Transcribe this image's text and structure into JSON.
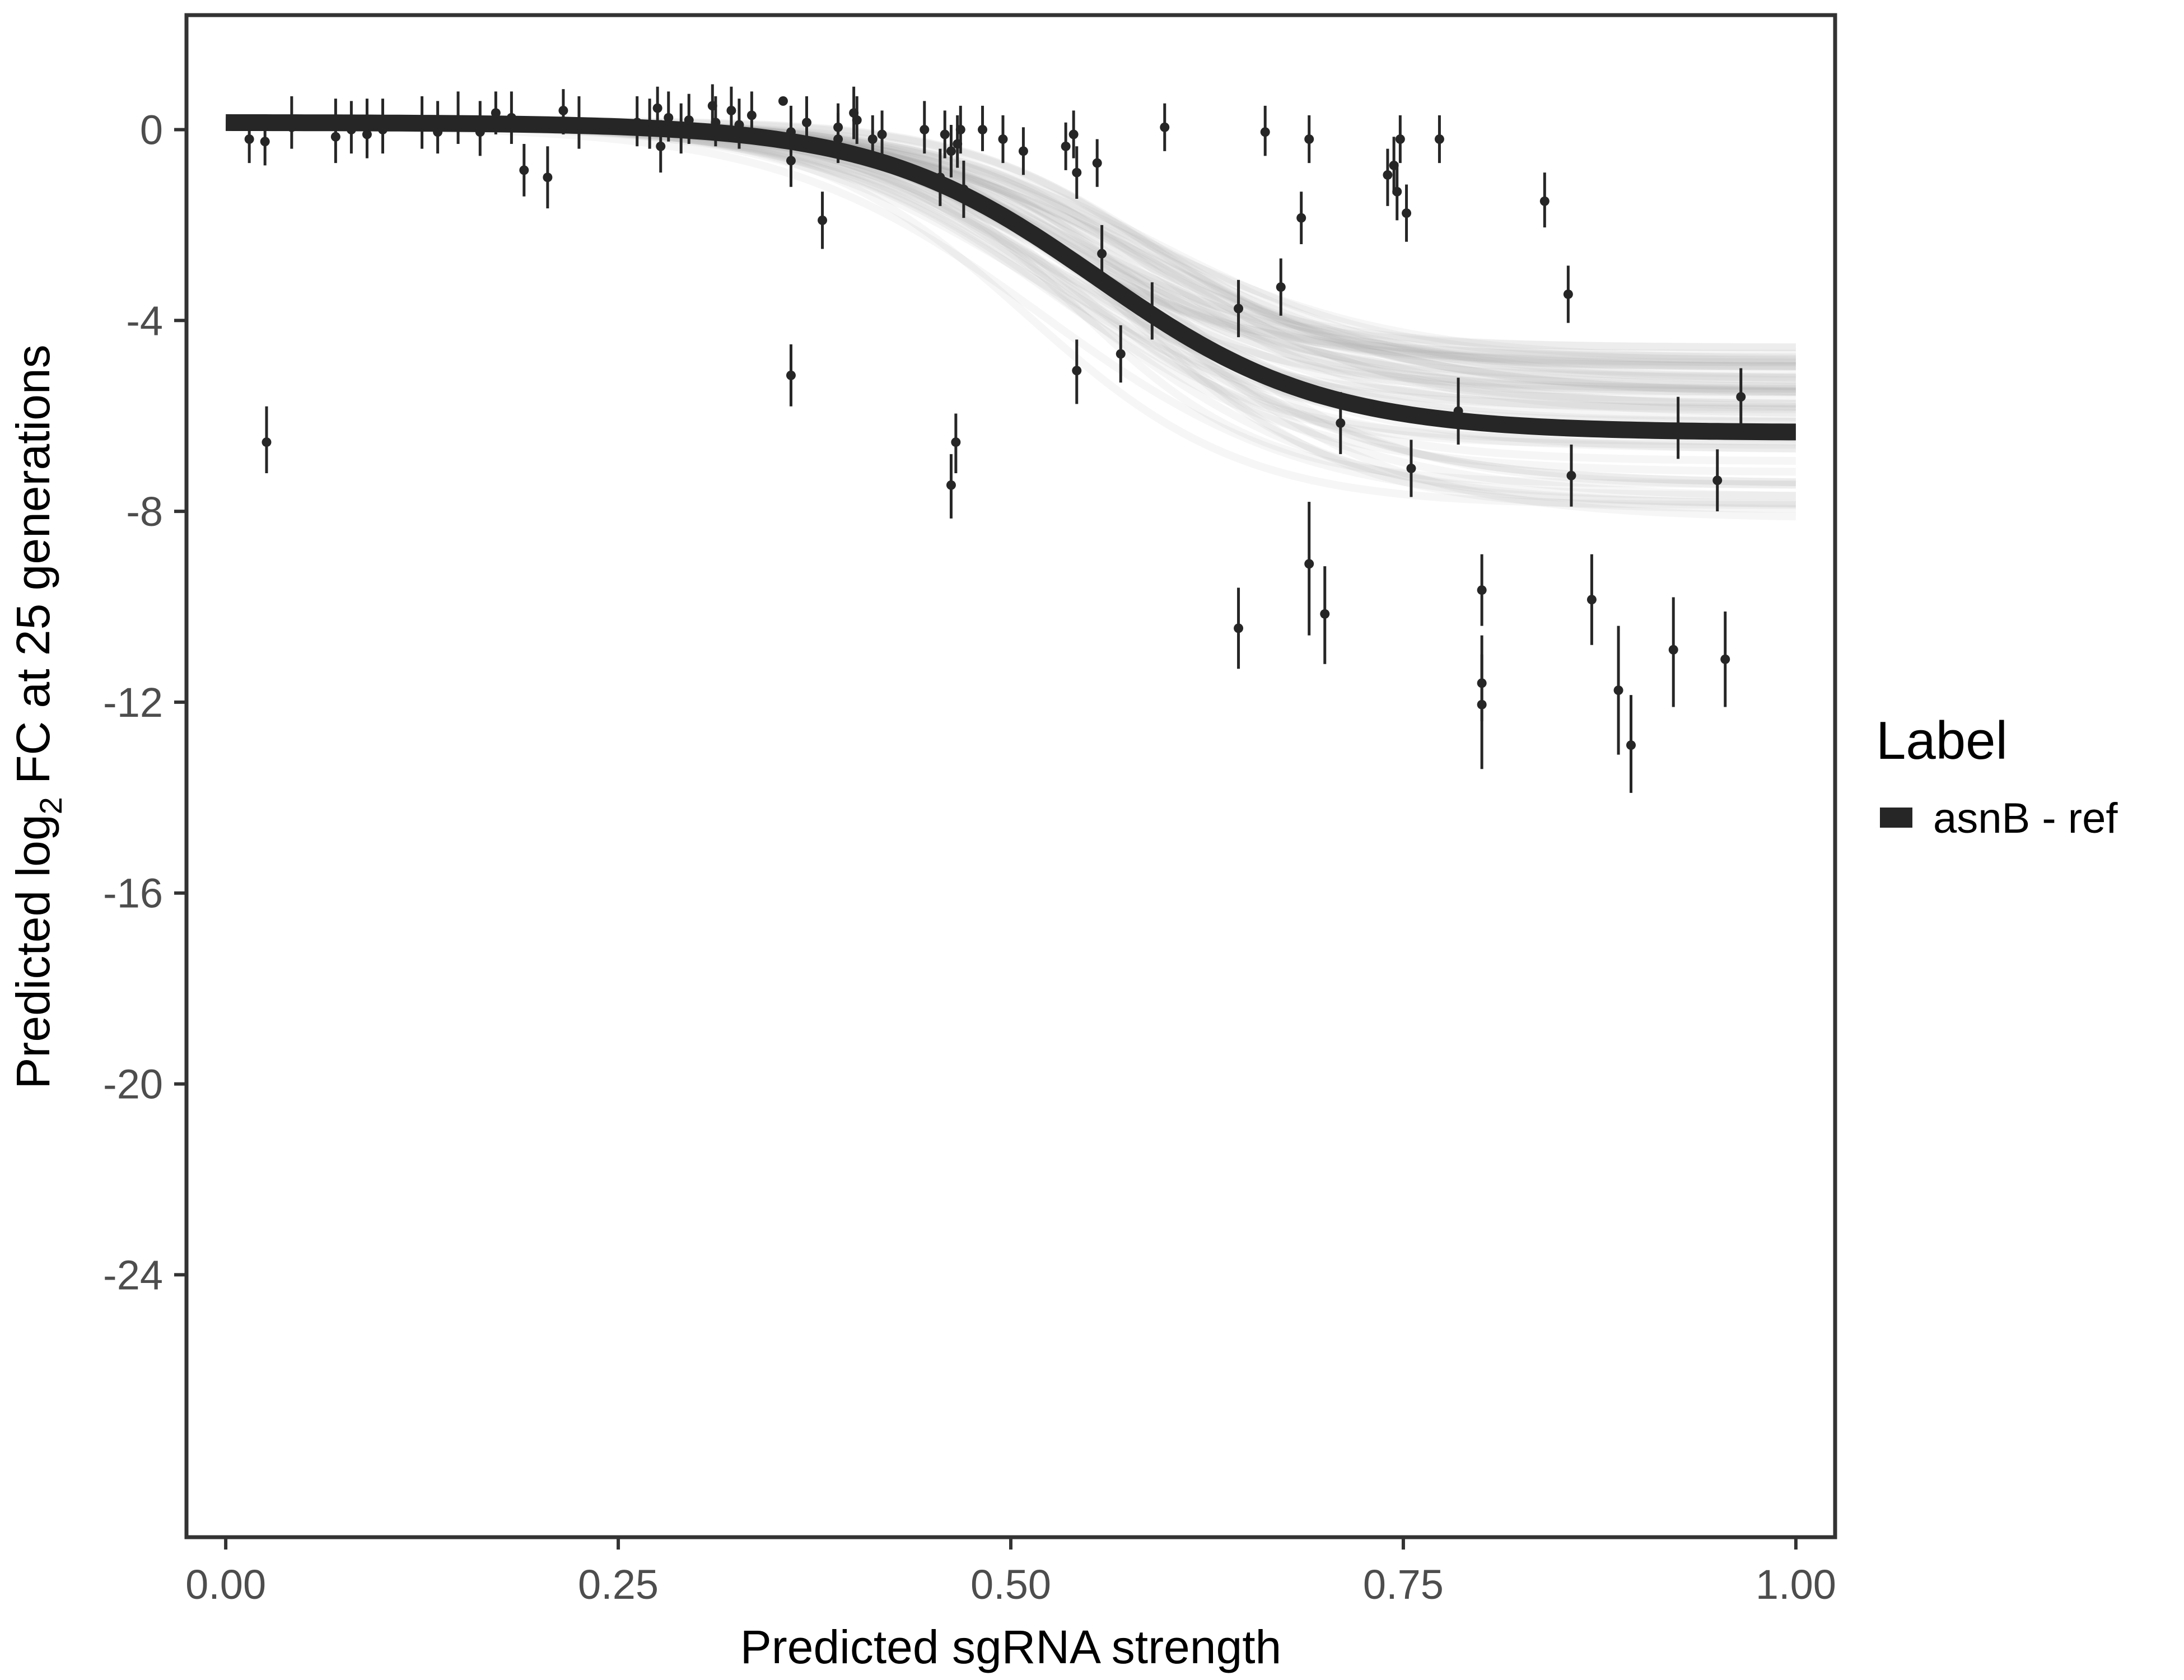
{
  "chart_data": {
    "type": "scatter",
    "title": "",
    "xlabel": "Predicted sgRNA strength",
    "ylabel_parts": {
      "pre": "Predicted  log",
      "sub": "2",
      "post": " FC at 25 generations"
    },
    "xlim": [
      -0.025,
      1.025
    ],
    "ylim": [
      -29.5,
      2.4
    ],
    "x_ticks": [
      0,
      0.25,
      0.5,
      0.75,
      1
    ],
    "x_tick_labels": [
      "0.00",
      "0.25",
      "0.50",
      "0.75",
      "1.00"
    ],
    "y_ticks": [
      0,
      -4,
      -8,
      -12,
      -16,
      -20,
      -24
    ],
    "y_tick_labels": [
      "0",
      "-4",
      "-8",
      "-12",
      "-16",
      "-20",
      "-24"
    ],
    "grid": false,
    "legend": {
      "title": "Label",
      "position": "right",
      "items": [
        {
          "label": "asnB - ref",
          "color": "#262626"
        }
      ]
    },
    "fit_curve": {
      "series": "asnB - ref",
      "upper": 0.15,
      "lower": -6.35,
      "midpoint": 0.555,
      "steepness": 14
    },
    "posterior_band": {
      "color": "#999999",
      "n_draws": 60
    },
    "points": [
      {
        "x": 0.015,
        "y": -0.2,
        "lo": -0.7,
        "hi": 0.3
      },
      {
        "x": 0.025,
        "y": -0.25,
        "lo": -0.75,
        "hi": 0.25
      },
      {
        "x": 0.026,
        "y": -6.55,
        "lo": -7.2,
        "hi": -5.8
      },
      {
        "x": 0.042,
        "y": 0.05,
        "lo": -0.4,
        "hi": 0.7
      },
      {
        "x": 0.07,
        "y": -0.15,
        "lo": -0.7,
        "hi": 0.65
      },
      {
        "x": 0.08,
        "y": 0.0,
        "lo": -0.5,
        "hi": 0.6
      },
      {
        "x": 0.09,
        "y": -0.1,
        "lo": -0.6,
        "hi": 0.65
      },
      {
        "x": 0.1,
        "y": 0.0,
        "lo": -0.5,
        "hi": 0.65
      },
      {
        "x": 0.125,
        "y": 0.1,
        "lo": -0.4,
        "hi": 0.7
      },
      {
        "x": 0.135,
        "y": -0.05,
        "lo": -0.5,
        "hi": 0.6
      },
      {
        "x": 0.148,
        "y": 0.2,
        "lo": -0.3,
        "hi": 0.8
      },
      {
        "x": 0.162,
        "y": -0.05,
        "lo": -0.55,
        "hi": 0.6
      },
      {
        "x": 0.172,
        "y": 0.35,
        "lo": -0.1,
        "hi": 0.8
      },
      {
        "x": 0.182,
        "y": 0.25,
        "lo": -0.3,
        "hi": 0.8
      },
      {
        "x": 0.19,
        "y": -0.85,
        "lo": -1.4,
        "hi": -0.3
      },
      {
        "x": 0.205,
        "y": -1.0,
        "lo": -1.65,
        "hi": -0.35
      },
      {
        "x": 0.215,
        "y": 0.4,
        "lo": -0.1,
        "hi": 0.85
      },
      {
        "x": 0.225,
        "y": 0.1,
        "lo": -0.4,
        "hi": 0.7
      },
      {
        "x": 0.262,
        "y": 0.15,
        "lo": -0.35,
        "hi": 0.7
      },
      {
        "x": 0.27,
        "y": 0.1,
        "lo": -0.4,
        "hi": 0.65
      },
      {
        "x": 0.275,
        "y": 0.45,
        "lo": -0.05,
        "hi": 0.9
      },
      {
        "x": 0.277,
        "y": -0.35,
        "lo": -0.9,
        "hi": 0.2
      },
      {
        "x": 0.282,
        "y": 0.25,
        "lo": -0.25,
        "hi": 0.8
      },
      {
        "x": 0.29,
        "y": 0.0,
        "lo": -0.5,
        "hi": 0.55
      },
      {
        "x": 0.295,
        "y": 0.2,
        "lo": -0.3,
        "hi": 0.75
      },
      {
        "x": 0.31,
        "y": 0.5,
        "lo": 0.0,
        "hi": 0.95
      },
      {
        "x": 0.312,
        "y": 0.15,
        "lo": -0.35,
        "hi": 0.7
      },
      {
        "x": 0.322,
        "y": 0.4,
        "lo": -0.1,
        "hi": 0.9
      },
      {
        "x": 0.327,
        "y": 0.1,
        "lo": -0.4,
        "hi": 0.65
      },
      {
        "x": 0.335,
        "y": 0.3,
        "lo": -0.2,
        "hi": 0.8
      },
      {
        "x": 0.355,
        "y": 0.6,
        "lo": 0.55,
        "hi": 0.65
      },
      {
        "x": 0.36,
        "y": -0.05,
        "lo": -0.5,
        "hi": 0.5
      },
      {
        "x": 0.36,
        "y": -0.65,
        "lo": -1.2,
        "hi": -0.1
      },
      {
        "x": 0.36,
        "y": -5.15,
        "lo": -5.8,
        "hi": -4.5
      },
      {
        "x": 0.37,
        "y": 0.15,
        "lo": -0.4,
        "hi": 0.7
      },
      {
        "x": 0.38,
        "y": -1.9,
        "lo": -2.5,
        "hi": -1.3
      },
      {
        "x": 0.39,
        "y": -0.2,
        "lo": -0.7,
        "hi": 0.35
      },
      {
        "x": 0.39,
        "y": 0.05,
        "lo": -0.45,
        "hi": 0.55
      },
      {
        "x": 0.4,
        "y": 0.35,
        "lo": -0.2,
        "hi": 0.9
      },
      {
        "x": 0.402,
        "y": 0.2,
        "lo": -0.3,
        "hi": 0.7
      },
      {
        "x": 0.412,
        "y": -0.2,
        "lo": -0.7,
        "hi": 0.3
      },
      {
        "x": 0.418,
        "y": -0.1,
        "lo": -0.6,
        "hi": 0.4
      },
      {
        "x": 0.445,
        "y": 0.0,
        "lo": -0.5,
        "hi": 0.6
      },
      {
        "x": 0.455,
        "y": -1.0,
        "lo": -1.6,
        "hi": -0.4
      },
      {
        "x": 0.458,
        "y": -0.1,
        "lo": -0.6,
        "hi": 0.4
      },
      {
        "x": 0.462,
        "y": -7.45,
        "lo": -8.15,
        "hi": -6.8
      },
      {
        "x": 0.462,
        "y": -0.45,
        "lo": -1.0,
        "hi": 0.1
      },
      {
        "x": 0.465,
        "y": -6.55,
        "lo": -7.2,
        "hi": -5.95
      },
      {
        "x": 0.466,
        "y": -0.3,
        "lo": -0.8,
        "hi": 0.3
      },
      {
        "x": 0.468,
        "y": 0.0,
        "lo": -0.5,
        "hi": 0.5
      },
      {
        "x": 0.47,
        "y": -1.25,
        "lo": -1.85,
        "hi": -0.65
      },
      {
        "x": 0.482,
        "y": 0.0,
        "lo": -0.45,
        "hi": 0.5
      },
      {
        "x": 0.495,
        "y": -0.2,
        "lo": -0.7,
        "hi": 0.3
      },
      {
        "x": 0.508,
        "y": -0.45,
        "lo": -0.95,
        "hi": 0.05
      },
      {
        "x": 0.535,
        "y": -0.35,
        "lo": -0.85,
        "hi": 0.15
      },
      {
        "x": 0.54,
        "y": -0.1,
        "lo": -0.6,
        "hi": 0.4
      },
      {
        "x": 0.542,
        "y": -0.9,
        "lo": -1.45,
        "hi": -0.35
      },
      {
        "x": 0.542,
        "y": -5.05,
        "lo": -5.75,
        "hi": -4.4
      },
      {
        "x": 0.555,
        "y": -0.7,
        "lo": -1.2,
        "hi": -0.2
      },
      {
        "x": 0.558,
        "y": -2.6,
        "lo": -3.2,
        "hi": -2.0
      },
      {
        "x": 0.57,
        "y": -4.7,
        "lo": -5.3,
        "hi": -4.1
      },
      {
        "x": 0.59,
        "y": -3.8,
        "lo": -4.4,
        "hi": -3.2
      },
      {
        "x": 0.598,
        "y": 0.05,
        "lo": -0.45,
        "hi": 0.55
      },
      {
        "x": 0.645,
        "y": -3.75,
        "lo": -4.35,
        "hi": -3.15
      },
      {
        "x": 0.645,
        "y": -10.45,
        "lo": -11.3,
        "hi": -9.6
      },
      {
        "x": 0.662,
        "y": -0.05,
        "lo": -0.55,
        "hi": 0.5
      },
      {
        "x": 0.672,
        "y": -3.3,
        "lo": -3.9,
        "hi": -2.7
      },
      {
        "x": 0.685,
        "y": -1.85,
        "lo": -2.4,
        "hi": -1.3
      },
      {
        "x": 0.69,
        "y": -0.2,
        "lo": -0.7,
        "hi": 0.3
      },
      {
        "x": 0.69,
        "y": -9.1,
        "lo": -10.6,
        "hi": -7.8
      },
      {
        "x": 0.7,
        "y": -10.15,
        "lo": -11.2,
        "hi": -9.15
      },
      {
        "x": 0.71,
        "y": -6.15,
        "lo": -6.8,
        "hi": -5.5
      },
      {
        "x": 0.74,
        "y": -0.95,
        "lo": -1.6,
        "hi": -0.4
      },
      {
        "x": 0.744,
        "y": -0.75,
        "lo": -1.35,
        "hi": -0.15
      },
      {
        "x": 0.746,
        "y": -1.3,
        "lo": -1.9,
        "hi": -0.7
      },
      {
        "x": 0.748,
        "y": -0.2,
        "lo": -0.7,
        "hi": 0.3
      },
      {
        "x": 0.752,
        "y": -1.75,
        "lo": -2.35,
        "hi": -1.15
      },
      {
        "x": 0.755,
        "y": -7.1,
        "lo": -7.7,
        "hi": -6.5
      },
      {
        "x": 0.773,
        "y": -0.2,
        "lo": -0.7,
        "hi": 0.3
      },
      {
        "x": 0.785,
        "y": -5.9,
        "lo": -6.6,
        "hi": -5.2
      },
      {
        "x": 0.8,
        "y": -9.65,
        "lo": -10.4,
        "hi": -8.9
      },
      {
        "x": 0.8,
        "y": -11.6,
        "lo": -12.4,
        "hi": -10.6
      },
      {
        "x": 0.8,
        "y": -12.05,
        "lo": -13.4,
        "hi": -11.0
      },
      {
        "x": 0.84,
        "y": -1.5,
        "lo": -2.05,
        "hi": -0.9
      },
      {
        "x": 0.855,
        "y": -3.45,
        "lo": -4.05,
        "hi": -2.85
      },
      {
        "x": 0.857,
        "y": -7.25,
        "lo": -7.9,
        "hi": -6.6
      },
      {
        "x": 0.87,
        "y": -9.85,
        "lo": -10.8,
        "hi": -8.9
      },
      {
        "x": 0.887,
        "y": -11.75,
        "lo": -13.1,
        "hi": -10.4
      },
      {
        "x": 0.895,
        "y": -12.9,
        "lo": -13.9,
        "hi": -11.85
      },
      {
        "x": 0.922,
        "y": -10.9,
        "lo": -12.1,
        "hi": -9.8
      },
      {
        "x": 0.925,
        "y": -6.3,
        "lo": -6.9,
        "hi": -5.6
      },
      {
        "x": 0.95,
        "y": -7.35,
        "lo": -8.0,
        "hi": -6.7
      },
      {
        "x": 0.955,
        "y": -11.1,
        "lo": -12.1,
        "hi": -10.1
      },
      {
        "x": 0.965,
        "y": -5.6,
        "lo": -6.2,
        "hi": -5.0
      }
    ]
  }
}
